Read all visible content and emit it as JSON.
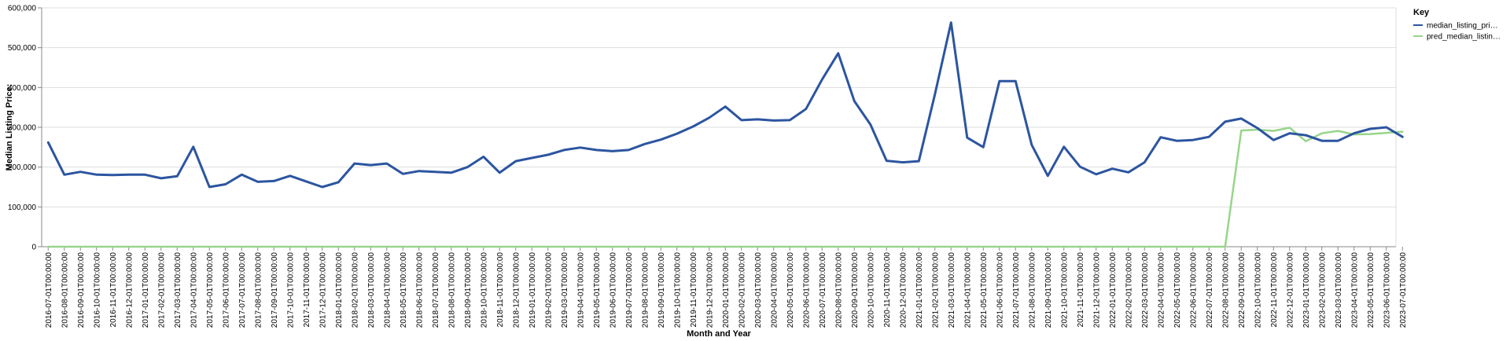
{
  "chart_data": {
    "type": "line",
    "xlabel": "Month and Year",
    "ylabel": "Median Listing Price:",
    "ylim": [
      0,
      600000
    ],
    "yticks": [
      "0",
      "100,000",
      "200,000",
      "300,000",
      "400,000",
      "500,000",
      "600,000"
    ],
    "grid": true,
    "legend": {
      "title": "Key",
      "placement": "right",
      "labels": [
        "median_listing_pri…",
        "pred_median_listin…"
      ]
    },
    "colors": {
      "median": "#2c55a0",
      "pred": "#98d58b"
    },
    "categories": [
      "2016-07-01T00:00:00",
      "2016-08-01T00:00:00",
      "2016-09-01T00:00:00",
      "2016-10-01T00:00:00",
      "2016-11-01T00:00:00",
      "2016-12-01T00:00:00",
      "2017-01-01T00:00:00",
      "2017-02-01T00:00:00",
      "2017-03-01T00:00:00",
      "2017-04-01T00:00:00",
      "2017-05-01T00:00:00",
      "2017-06-01T00:00:00",
      "2017-07-01T00:00:00",
      "2017-08-01T00:00:00",
      "2017-09-01T00:00:00",
      "2017-10-01T00:00:00",
      "2017-11-01T00:00:00",
      "2017-12-01T00:00:00",
      "2018-01-01T00:00:00",
      "2018-02-01T00:00:00",
      "2018-03-01T00:00:00",
      "2018-04-01T00:00:00",
      "2018-05-01T00:00:00",
      "2018-06-01T00:00:00",
      "2018-07-01T00:00:00",
      "2018-08-01T00:00:00",
      "2018-09-01T00:00:00",
      "2018-10-01T00:00:00",
      "2018-11-01T00:00:00",
      "2018-12-01T00:00:00",
      "2019-01-01T00:00:00",
      "2019-02-01T00:00:00",
      "2019-03-01T00:00:00",
      "2019-04-01T00:00:00",
      "2019-05-01T00:00:00",
      "2019-06-01T00:00:00",
      "2019-07-01T00:00:00",
      "2019-08-01T00:00:00",
      "2019-09-01T00:00:00",
      "2019-10-01T00:00:00",
      "2019-11-01T00:00:00",
      "2019-12-01T00:00:00",
      "2020-01-01T00:00:00",
      "2020-02-01T00:00:00",
      "2020-03-01T00:00:00",
      "2020-04-01T00:00:00",
      "2020-05-01T00:00:00",
      "2020-06-01T00:00:00",
      "2020-07-01T00:00:00",
      "2020-08-01T00:00:00",
      "2020-09-01T00:00:00",
      "2020-10-01T00:00:00",
      "2020-11-01T00:00:00",
      "2020-12-01T00:00:00",
      "2021-01-01T00:00:00",
      "2021-02-01T00:00:00",
      "2021-03-01T00:00:00",
      "2021-04-01T00:00:00",
      "2021-05-01T00:00:00",
      "2021-06-01T00:00:00",
      "2021-07-01T00:00:00",
      "2021-08-01T00:00:00",
      "2021-09-01T00:00:00",
      "2021-10-01T00:00:00",
      "2021-11-01T00:00:00",
      "2021-12-01T00:00:00",
      "2022-01-01T00:00:00",
      "2022-02-01T00:00:00",
      "2022-03-01T00:00:00",
      "2022-04-01T00:00:00",
      "2022-05-01T00:00:00",
      "2022-06-01T00:00:00",
      "2022-07-01T00:00:00",
      "2022-08-01T00:00:00",
      "2022-09-01T00:00:00",
      "2022-10-01T00:00:00",
      "2022-11-01T00:00:00",
      "2022-12-01T00:00:00",
      "2023-01-01T00:00:00",
      "2023-02-01T00:00:00",
      "2023-03-01T00:00:00",
      "2023-04-01T00:00:00",
      "2023-05-01T00:00:00",
      "2023-06-01T00:00:00",
      "2023-07-01T00:00:00"
    ],
    "series": [
      {
        "name": "median_listing_pri…",
        "values": [
          262000,
          181000,
          188000,
          181000,
          180000,
          181000,
          181000,
          172000,
          177000,
          251000,
          150000,
          157000,
          181000,
          163000,
          165000,
          178000,
          164000,
          150000,
          162000,
          209000,
          205000,
          209000,
          183000,
          190000,
          188000,
          186000,
          200000,
          226000,
          186000,
          215000,
          223000,
          231000,
          243000,
          249000,
          243000,
          240000,
          243000,
          258000,
          269000,
          284000,
          302000,
          324000,
          352000,
          318000,
          320000,
          317000,
          318000,
          346000,
          420000,
          486000,
          366000,
          307000,
          216000,
          212000,
          215000,
          383000,
          563000,
          274000,
          250000,
          416000,
          416000,
          256000,
          178000,
          251000,
          201000,
          182000,
          196000,
          187000,
          212000,
          275000,
          266000,
          268000,
          276000,
          314000,
          322000,
          298000,
          268000,
          285000,
          280000,
          266000,
          266000,
          285000,
          296000,
          300000,
          276000
        ]
      },
      {
        "name": "pred_median_listin…",
        "values": [
          0,
          0,
          0,
          0,
          0,
          0,
          0,
          0,
          0,
          0,
          0,
          0,
          0,
          0,
          0,
          0,
          0,
          0,
          0,
          0,
          0,
          0,
          0,
          0,
          0,
          0,
          0,
          0,
          0,
          0,
          0,
          0,
          0,
          0,
          0,
          0,
          0,
          0,
          0,
          0,
          0,
          0,
          0,
          0,
          0,
          0,
          0,
          0,
          0,
          0,
          0,
          0,
          0,
          0,
          0,
          0,
          0,
          0,
          0,
          0,
          0,
          0,
          0,
          0,
          0,
          0,
          0,
          0,
          0,
          0,
          0,
          0,
          0,
          0,
          292000,
          294000,
          291000,
          299000,
          265000,
          285000,
          291000,
          282000,
          283000,
          286000,
          289000
        ]
      }
    ]
  }
}
